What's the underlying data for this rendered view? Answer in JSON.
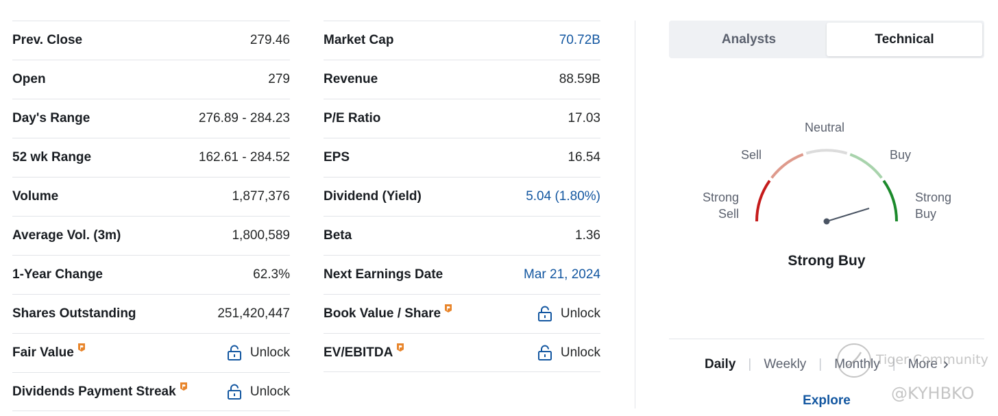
{
  "stats_left": [
    {
      "label": "Prev. Close",
      "value": "279.46"
    },
    {
      "label": "Open",
      "value": "279"
    },
    {
      "label": "Day's Range",
      "value": "276.89 - 284.23"
    },
    {
      "label": "52 wk Range",
      "value": "162.61 - 284.52"
    },
    {
      "label": "Volume",
      "value": "1,877,376"
    },
    {
      "label": "Average Vol. (3m)",
      "value": "1,800,589"
    },
    {
      "label": "1-Year Change",
      "value": "62.3%"
    },
    {
      "label": "Shares Outstanding",
      "value": "251,420,447"
    },
    {
      "label": "Fair Value",
      "value": "Unlock"
    },
    {
      "label": "Dividends Payment Streak",
      "value": "Unlock"
    }
  ],
  "stats_mid": [
    {
      "label": "Market Cap",
      "value": "70.72B"
    },
    {
      "label": "Revenue",
      "value": "88.59B"
    },
    {
      "label": "P/E Ratio",
      "value": "17.03"
    },
    {
      "label": "EPS",
      "value": "16.54"
    },
    {
      "label": "Dividend (Yield)",
      "value": "5.04 (1.80%)"
    },
    {
      "label": "Beta",
      "value": "1.36"
    },
    {
      "label": "Next Earnings Date",
      "value": "Mar 21, 2024"
    },
    {
      "label": "Book Value / Share",
      "value": "Unlock"
    },
    {
      "label": "EV/EBITDA",
      "value": "Unlock"
    }
  ],
  "tabs": {
    "analysts": "Analysts",
    "technical": "Technical",
    "active": "Technical"
  },
  "gauge": {
    "labels": {
      "strong_sell_1": "Strong",
      "strong_sell_2": "Sell",
      "sell": "Sell",
      "neutral": "Neutral",
      "buy": "Buy",
      "strong_buy_1": "Strong",
      "strong_buy_2": "Buy"
    },
    "verdict": "Strong Buy",
    "colors": {
      "strong_sell": "#c51b1b",
      "sell": "#de9a8c",
      "neutral": "#dcdcdc",
      "buy": "#a8d3ac",
      "strong_buy": "#1c8a2c",
      "needle": "#4a5463"
    }
  },
  "periods": {
    "daily": "Daily",
    "weekly": "Weekly",
    "monthly": "Monthly",
    "more": "More",
    "active": "Daily"
  },
  "explore": "Explore",
  "watermark": {
    "line1": "Tiger Community",
    "line2": "@KYHBKO"
  },
  "colors": {
    "link": "#1256a0",
    "pro_badge": "#e8852b"
  }
}
